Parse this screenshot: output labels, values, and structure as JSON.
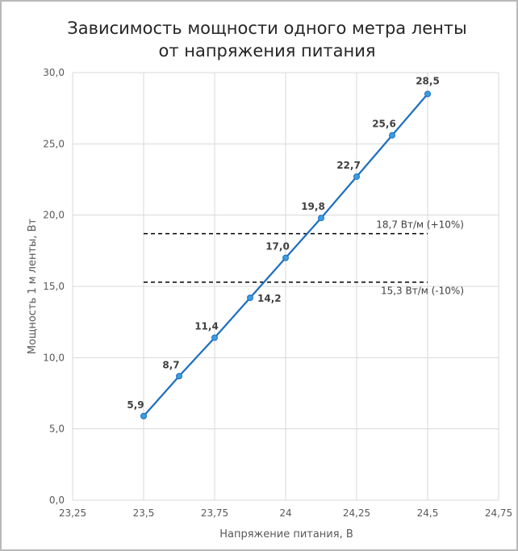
{
  "chart_data": {
    "type": "line",
    "title_lines": [
      "Зависимость мощности одного метра ленты",
      "от напряжения питания"
    ],
    "xlabel": "Напряжение питания, В",
    "ylabel": "Мощность 1 м ленты, Вт",
    "xlim": [
      23.25,
      24.75
    ],
    "ylim": [
      0,
      30
    ],
    "grid": true,
    "x_ticks": [
      23.25,
      23.5,
      23.75,
      24,
      24.25,
      24.5,
      24.75
    ],
    "x_tick_labels": [
      "23,25",
      "23,5",
      "23,75",
      "24",
      "24,25",
      "24,5",
      "24,75"
    ],
    "y_ticks": [
      0,
      5,
      10,
      15,
      20,
      25,
      30
    ],
    "y_tick_labels": [
      "0,0",
      "5,0",
      "10,0",
      "15,0",
      "20,0",
      "25,0",
      "30,0"
    ],
    "series": [
      {
        "x": [
          23.5,
          23.625,
          23.75,
          23.875,
          24.0,
          24.125,
          24.25,
          24.375,
          24.5
        ],
        "y": [
          5.9,
          8.7,
          11.4,
          14.2,
          17.0,
          19.8,
          22.7,
          25.6,
          28.5
        ],
        "labels": [
          "5,9",
          "8,7",
          "11,4",
          "14,2",
          "17,0",
          "19,8",
          "22,7",
          "25,6",
          "28,5"
        ],
        "color": "#1f6fbf",
        "marker_color": "#3a9ee0"
      }
    ],
    "reference_lines": [
      {
        "y": 18.7,
        "x_range": [
          23.5,
          24.5
        ],
        "label": "18,7 Вт/м (+10%)",
        "label_side": "above"
      },
      {
        "y": 15.3,
        "x_range": [
          23.5,
          24.5
        ],
        "label": "15,3 Вт/м (-10%)",
        "label_side": "below"
      }
    ]
  }
}
